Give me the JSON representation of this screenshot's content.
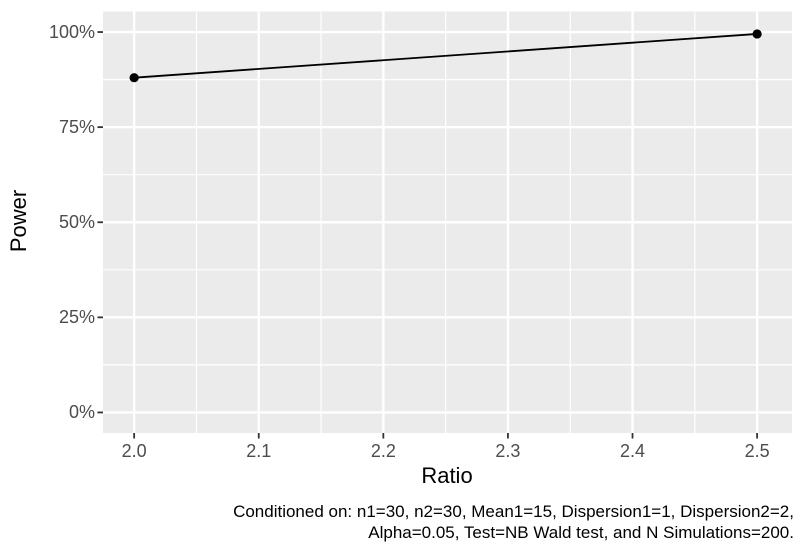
{
  "chart_data": {
    "type": "line",
    "title": "",
    "xlabel": "Ratio",
    "ylabel": "Power",
    "series": [
      {
        "name": "Power",
        "color": "#000000",
        "points": [
          {
            "x": 2.0,
            "y_percent": 88.0
          },
          {
            "x": 2.5,
            "y_percent": 99.5
          }
        ]
      }
    ],
    "x_ticks": [
      2.0,
      2.1,
      2.2,
      2.3,
      2.4,
      2.5
    ],
    "x_tick_labels": [
      "2.0",
      "2.1",
      "2.2",
      "2.3",
      "2.4",
      "2.5"
    ],
    "y_ticks": [
      0,
      25,
      50,
      75,
      100
    ],
    "y_tick_labels": [
      "0%",
      "25%",
      "50%",
      "75%",
      "100%"
    ],
    "x_minor_gridlines": [
      2.05,
      2.15,
      2.25,
      2.35,
      2.45
    ],
    "y_minor_gridlines": [
      12.5,
      37.5,
      62.5,
      87.5
    ],
    "xlim": [
      1.975,
      2.528
    ],
    "ylim_percent": [
      -5.4,
      105.4
    ],
    "grid": {
      "panel_background": "#EBEBEB",
      "major_color": "#FFFFFF",
      "minor_color": "#FFFFFF"
    },
    "legend": "none",
    "style": {
      "tick_label_color": "#4D4D4D",
      "tick_mark_color": "#333333",
      "axis_title_color": "#000000",
      "line_color": "#000000",
      "point_color": "#000000"
    },
    "caption_lines": [
      "Conditioned on: n1=30, n2=30, Mean1=15, Dispersion1=1, Dispersion2=2,",
      "Alpha=0.05, Test=NB Wald test, and N Simulations=200."
    ],
    "caption_full": "Conditioned on: n1=30, n2=30, Mean1=15, Dispersion1=1, Dispersion2=2, Alpha=0.05, Test=NB Wald test, and N Simulations=200."
  }
}
